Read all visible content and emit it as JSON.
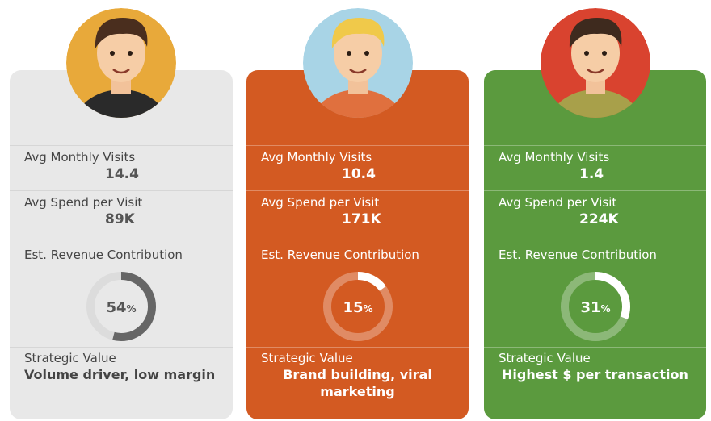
{
  "cards": [
    {
      "visits_label": "Avg Monthly Visits",
      "visits": 14.4,
      "spend_label": "Avg Spend per Visit",
      "spend": "89K",
      "revenue_label": "Est. Revenue Contribution",
      "revenue": 54,
      "unit": "%",
      "strategy_label": "Strategic Value",
      "strategy": "Volume driver, low margin"
    },
    {
      "visits_label": "Avg Monthly Visits",
      "visits": 10.4,
      "spend_label": "Avg Spend per Visit",
      "spend": "171K",
      "revenue_label": "Est. Revenue Contribution",
      "revenue": 15,
      "unit": "%",
      "strategy_label": "Strategic Value",
      "strategy": "Brand building, viral marketing"
    },
    {
      "visits_label": "Avg Monthly Visits",
      "visits": 1.4,
      "spend_label": "Avg Spend per Visit",
      "spend": "224K",
      "revenue_label": "Est. Revenue Contribution",
      "revenue": 31,
      "unit": "%",
      "strategy_label": "Strategic Value",
      "strategy": "Highest $ per transaction"
    }
  ]
}
